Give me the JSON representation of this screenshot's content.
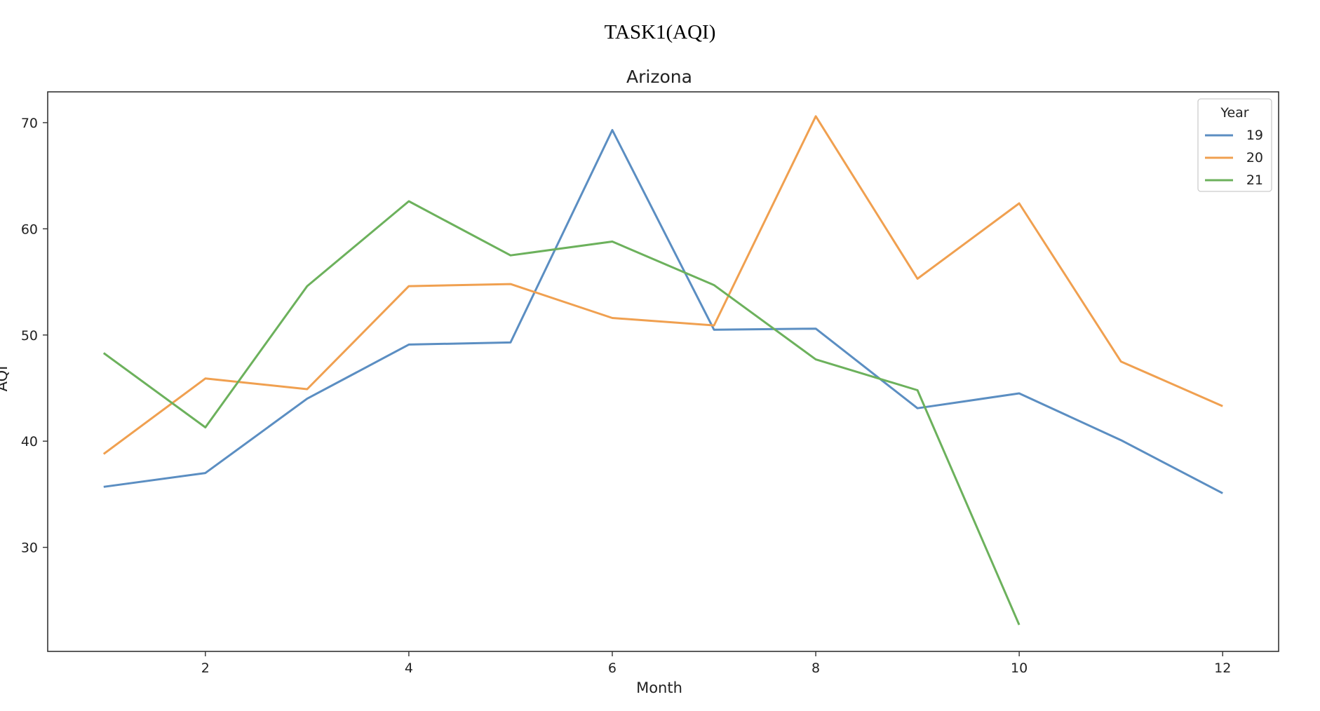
{
  "page": {
    "title": "TASK1(AQI)"
  },
  "chart_data": {
    "type": "line",
    "title": "Arizona",
    "xlabel": "Month",
    "ylabel": "AQI",
    "xlim": [
      0.45,
      12.55
    ],
    "ylim": [
      20.2,
      72.9
    ],
    "xticks": [
      2,
      4,
      6,
      8,
      10,
      12
    ],
    "yticks": [
      30,
      40,
      50,
      60,
      70
    ],
    "grid": false,
    "legend": {
      "title": "Year",
      "placement": "top-right"
    },
    "series": [
      {
        "name": "19",
        "color": "#5b8ec2",
        "x": [
          1,
          2,
          3,
          4,
          5,
          6,
          7,
          8,
          9,
          10,
          11,
          12
        ],
        "values": [
          35.7,
          37.0,
          44.0,
          49.1,
          49.3,
          69.3,
          50.5,
          50.6,
          43.1,
          44.5,
          40.1,
          35.1
        ]
      },
      {
        "name": "20",
        "color": "#f0a050",
        "x": [
          1,
          2,
          3,
          4,
          5,
          6,
          7,
          8,
          9,
          10,
          11,
          12
        ],
        "values": [
          38.8,
          45.9,
          44.9,
          54.6,
          54.8,
          51.6,
          50.9,
          70.6,
          55.3,
          62.4,
          47.5,
          43.3
        ]
      },
      {
        "name": "21",
        "color": "#6cb15c",
        "x": [
          1,
          2,
          3,
          4,
          5,
          6,
          7,
          8,
          9,
          10
        ],
        "values": [
          48.3,
          41.3,
          54.6,
          62.6,
          57.5,
          58.8,
          54.7,
          47.7,
          44.8,
          22.7
        ]
      }
    ]
  }
}
